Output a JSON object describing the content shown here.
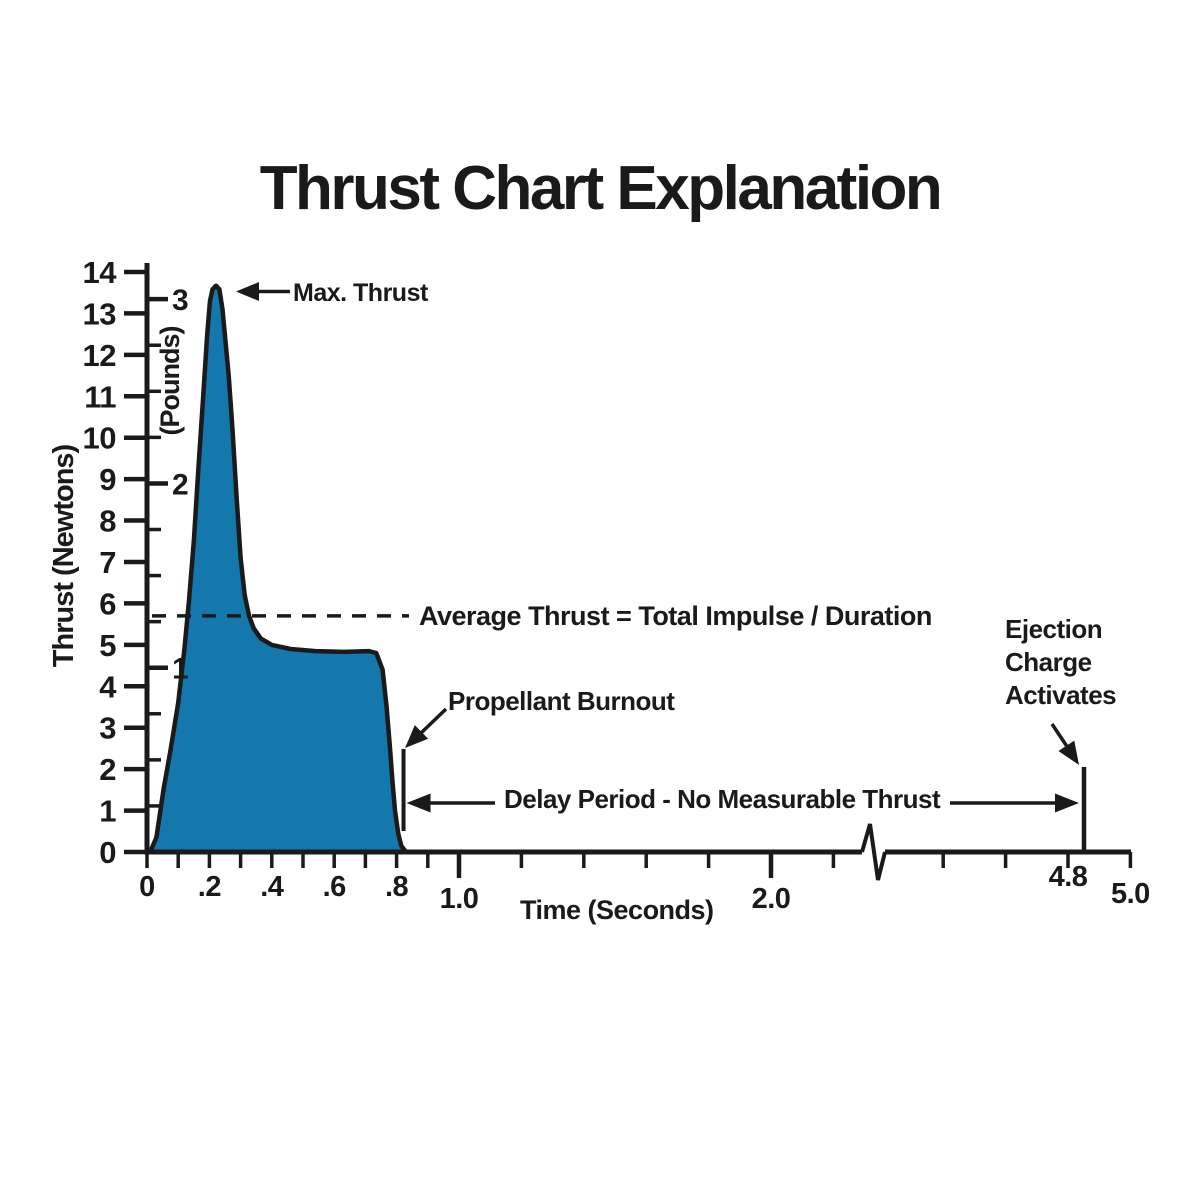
{
  "title": "Thrust Chart Explanation",
  "colors": {
    "curve_fill": "#1478AD",
    "curve_stroke": "#1a1a1a",
    "text": "#1a1a1a",
    "background": "#ffffff"
  },
  "chart_data": {
    "type": "area",
    "title": "Thrust Chart Explanation",
    "xlabel": "Time (Seconds)",
    "ylabel": "Thrust (Newtons)",
    "y2label": "(Pounds)",
    "x_unit": "seconds",
    "y_unit": "newtons",
    "xlim": [
      0,
      5.0
    ],
    "ylim": [
      0,
      14
    ],
    "grid": false,
    "axis_break": {
      "from_s": 2.3,
      "to_s": 4.3
    },
    "newtons_per_pound": 4.448,
    "newton_ticks": [
      0,
      1,
      2,
      3,
      4,
      5,
      6,
      7,
      8,
      9,
      10,
      11,
      12,
      13,
      14
    ],
    "pound_ticks_labeled": [
      1,
      2,
      3
    ],
    "pound_ticks_minor": [
      0.25,
      0.5,
      0.75,
      1.25,
      1.5,
      1.75,
      2.25,
      2.5,
      2.75
    ],
    "x_ticks": [
      {
        "t": 0.0,
        "label": "0"
      },
      {
        "t": 0.1
      },
      {
        "t": 0.2,
        "label": ".2"
      },
      {
        "t": 0.3
      },
      {
        "t": 0.4,
        "label": ".4"
      },
      {
        "t": 0.5
      },
      {
        "t": 0.6,
        "label": ".6"
      },
      {
        "t": 0.7
      },
      {
        "t": 0.8,
        "label": ".8"
      },
      {
        "t": 0.9
      },
      {
        "t": 1.0,
        "label": "1.0",
        "major": true
      },
      {
        "t": 1.2
      },
      {
        "t": 1.4
      },
      {
        "t": 1.6
      },
      {
        "t": 1.8
      },
      {
        "t": 2.0,
        "label": "2.0",
        "major": true
      },
      {
        "t": 2.2
      },
      {
        "t": 4.4
      },
      {
        "t": 4.6
      },
      {
        "t": 4.8,
        "label": "4.8",
        "row": "high"
      },
      {
        "t": 5.0,
        "label": "5.0",
        "row": "low"
      }
    ],
    "series": [
      {
        "name": "thrust-curve",
        "points": [
          [
            0.01,
            0.0
          ],
          [
            0.03,
            0.35
          ],
          [
            0.054,
            1.55
          ],
          [
            0.074,
            2.4
          ],
          [
            0.1,
            3.6
          ],
          [
            0.12,
            4.9
          ],
          [
            0.135,
            6.1
          ],
          [
            0.15,
            7.5
          ],
          [
            0.165,
            9.3
          ],
          [
            0.18,
            11.0
          ],
          [
            0.193,
            12.5
          ],
          [
            0.202,
            13.3
          ],
          [
            0.21,
            13.58
          ],
          [
            0.221,
            13.67
          ],
          [
            0.232,
            13.58
          ],
          [
            0.242,
            13.1
          ],
          [
            0.252,
            12.3
          ],
          [
            0.262,
            11.5
          ],
          [
            0.274,
            10.2
          ],
          [
            0.287,
            8.6
          ],
          [
            0.3,
            7.1
          ],
          [
            0.313,
            6.2
          ],
          [
            0.327,
            5.7
          ],
          [
            0.342,
            5.4
          ],
          [
            0.365,
            5.15
          ],
          [
            0.4,
            5.0
          ],
          [
            0.46,
            4.9
          ],
          [
            0.54,
            4.85
          ],
          [
            0.63,
            4.83
          ],
          [
            0.71,
            4.85
          ],
          [
            0.735,
            4.8
          ],
          [
            0.755,
            4.4
          ],
          [
            0.768,
            3.5
          ],
          [
            0.778,
            2.6
          ],
          [
            0.787,
            1.7
          ],
          [
            0.795,
            1.0
          ],
          [
            0.805,
            0.45
          ],
          [
            0.815,
            0.15
          ],
          [
            0.83,
            0.0
          ]
        ]
      }
    ],
    "annotations": {
      "max_thrust": {
        "label": "Max. Thrust",
        "value_newtons": 13.6,
        "time_s": 0.22
      },
      "average_thrust": {
        "label": "Average Thrust = Total Impulse / Duration",
        "value_newtons": 5.7
      },
      "propellant_burnout": {
        "label": "Propellant Burnout",
        "time_s": 0.82
      },
      "delay_period": {
        "label": "Delay Period - No Measurable Thrust",
        "from_s": 0.82,
        "to_s": 4.85
      },
      "ejection_charge": {
        "label": "Ejection Charge Activates",
        "lines": [
          "Ejection",
          "Charge",
          "Activates"
        ],
        "time_s": 4.85
      }
    }
  }
}
